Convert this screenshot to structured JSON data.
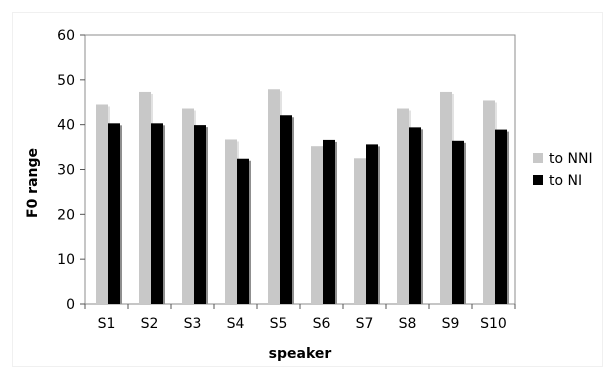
{
  "chart_data": {
    "type": "bar",
    "title": "",
    "xlabel": "speaker",
    "ylabel": "F0 range",
    "ylim": [
      0,
      60
    ],
    "yticks": [
      0,
      10,
      20,
      30,
      40,
      50,
      60
    ],
    "grid": false,
    "legend_position": "right",
    "categories": [
      "S1",
      "S2",
      "S3",
      "S4",
      "S5",
      "S6",
      "S7",
      "S8",
      "S9",
      "S10"
    ],
    "series": [
      {
        "name": "to NNI",
        "color": "#c8c8c8",
        "values": [
          44.5,
          47.3,
          43.6,
          36.7,
          47.9,
          35.2,
          32.5,
          43.6,
          47.3,
          45.4
        ]
      },
      {
        "name": "to NI",
        "color": "#000000",
        "values": [
          40.3,
          40.3,
          39.9,
          32.4,
          42.1,
          36.6,
          35.6,
          39.4,
          36.4,
          38.9
        ]
      }
    ]
  }
}
